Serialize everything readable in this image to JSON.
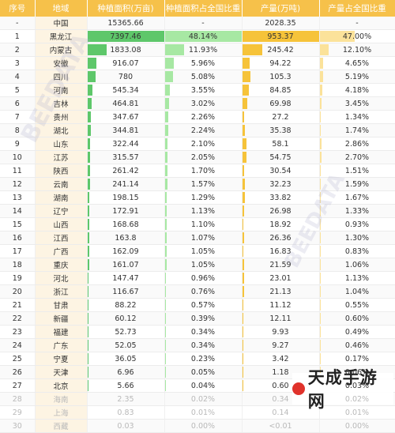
{
  "headers": [
    "序号",
    "地域",
    "种植面积(万亩)",
    "种植面积占全国比重",
    "产量(万吨)",
    "产量占全国比重"
  ],
  "rows": [
    {
      "rank": "-",
      "region": "中国",
      "area": "15365.66",
      "area_pct": "-",
      "production": "2028.35",
      "prod_pct": "-",
      "area_frac": 0,
      "area_pct_frac": 0,
      "prod_frac": 0,
      "prod_pct_frac": 0
    },
    {
      "rank": "1",
      "region": "黑龙江",
      "area": "7397.46",
      "area_pct": "48.14%",
      "production": "953.37",
      "prod_pct": "47.00%",
      "area_frac": 1.0,
      "area_pct_frac": 1.0,
      "prod_frac": 1.0,
      "prod_pct_frac": 0.47
    },
    {
      "rank": "2",
      "region": "内蒙古",
      "area": "1833.08",
      "area_pct": "11.93%",
      "production": "245.42",
      "prod_pct": "12.10%",
      "area_frac": 0.25,
      "area_pct_frac": 0.25,
      "prod_frac": 0.26,
      "prod_pct_frac": 0.12
    },
    {
      "rank": "3",
      "region": "安徽",
      "area": "916.07",
      "area_pct": "5.96%",
      "production": "94.22",
      "prod_pct": "4.65%",
      "area_frac": 0.12,
      "area_pct_frac": 0.12,
      "prod_frac": 0.1,
      "prod_pct_frac": 0.05
    },
    {
      "rank": "4",
      "region": "四川",
      "area": "780",
      "area_pct": "5.08%",
      "production": "105.3",
      "prod_pct": "5.19%",
      "area_frac": 0.11,
      "area_pct_frac": 0.11,
      "prod_frac": 0.11,
      "prod_pct_frac": 0.05
    },
    {
      "rank": "5",
      "region": "河南",
      "area": "545.34",
      "area_pct": "3.55%",
      "production": "84.85",
      "prod_pct": "4.18%",
      "area_frac": 0.07,
      "area_pct_frac": 0.07,
      "prod_frac": 0.09,
      "prod_pct_frac": 0.04
    },
    {
      "rank": "6",
      "region": "吉林",
      "area": "464.81",
      "area_pct": "3.02%",
      "production": "69.98",
      "prod_pct": "3.45%",
      "area_frac": 0.06,
      "area_pct_frac": 0.06,
      "prod_frac": 0.07,
      "prod_pct_frac": 0.03
    },
    {
      "rank": "7",
      "region": "贵州",
      "area": "347.67",
      "area_pct": "2.26%",
      "production": "27.2",
      "prod_pct": "1.34%",
      "area_frac": 0.05,
      "area_pct_frac": 0.05,
      "prod_frac": 0.03,
      "prod_pct_frac": 0.01
    },
    {
      "rank": "8",
      "region": "湖北",
      "area": "344.81",
      "area_pct": "2.24%",
      "production": "35.38",
      "prod_pct": "1.74%",
      "area_frac": 0.05,
      "area_pct_frac": 0.05,
      "prod_frac": 0.04,
      "prod_pct_frac": 0.02
    },
    {
      "rank": "9",
      "region": "山东",
      "area": "322.44",
      "area_pct": "2.10%",
      "production": "58.1",
      "prod_pct": "2.86%",
      "area_frac": 0.04,
      "area_pct_frac": 0.04,
      "prod_frac": 0.06,
      "prod_pct_frac": 0.03
    },
    {
      "rank": "10",
      "region": "江苏",
      "area": "315.57",
      "area_pct": "2.05%",
      "production": "54.75",
      "prod_pct": "2.70%",
      "area_frac": 0.04,
      "area_pct_frac": 0.04,
      "prod_frac": 0.06,
      "prod_pct_frac": 0.03
    },
    {
      "rank": "11",
      "region": "陕西",
      "area": "261.42",
      "area_pct": "1.70%",
      "production": "30.54",
      "prod_pct": "1.51%",
      "area_frac": 0.035,
      "area_pct_frac": 0.035,
      "prod_frac": 0.03,
      "prod_pct_frac": 0.015
    },
    {
      "rank": "12",
      "region": "云南",
      "area": "241.14",
      "area_pct": "1.57%",
      "production": "32.23",
      "prod_pct": "1.59%",
      "area_frac": 0.033,
      "area_pct_frac": 0.033,
      "prod_frac": 0.034,
      "prod_pct_frac": 0.016
    },
    {
      "rank": "13",
      "region": "湖南",
      "area": "198.15",
      "area_pct": "1.29%",
      "production": "33.82",
      "prod_pct": "1.67%",
      "area_frac": 0.027,
      "area_pct_frac": 0.027,
      "prod_frac": 0.035,
      "prod_pct_frac": 0.017
    },
    {
      "rank": "14",
      "region": "辽宁",
      "area": "172.91",
      "area_pct": "1.13%",
      "production": "26.98",
      "prod_pct": "1.33%",
      "area_frac": 0.023,
      "area_pct_frac": 0.023,
      "prod_frac": 0.028,
      "prod_pct_frac": 0.013
    },
    {
      "rank": "15",
      "region": "山西",
      "area": "168.68",
      "area_pct": "1.10%",
      "production": "18.92",
      "prod_pct": "0.93%",
      "area_frac": 0.023,
      "area_pct_frac": 0.023,
      "prod_frac": 0.02,
      "prod_pct_frac": 0.009
    },
    {
      "rank": "16",
      "region": "江西",
      "area": "163.8",
      "area_pct": "1.07%",
      "production": "26.36",
      "prod_pct": "1.30%",
      "area_frac": 0.022,
      "area_pct_frac": 0.022,
      "prod_frac": 0.028,
      "prod_pct_frac": 0.013
    },
    {
      "rank": "17",
      "region": "广西",
      "area": "162.09",
      "area_pct": "1.05%",
      "production": "16.83",
      "prod_pct": "0.83%",
      "area_frac": 0.022,
      "area_pct_frac": 0.022,
      "prod_frac": 0.018,
      "prod_pct_frac": 0.008
    },
    {
      "rank": "18",
      "region": "重庆",
      "area": "161.07",
      "area_pct": "1.05%",
      "production": "21.59",
      "prod_pct": "1.06%",
      "area_frac": 0.022,
      "area_pct_frac": 0.022,
      "prod_frac": 0.023,
      "prod_pct_frac": 0.011
    },
    {
      "rank": "19",
      "region": "河北",
      "area": "147.47",
      "area_pct": "0.96%",
      "production": "23.01",
      "prod_pct": "1.13%",
      "area_frac": 0.02,
      "area_pct_frac": 0.02,
      "prod_frac": 0.024,
      "prod_pct_frac": 0.011
    },
    {
      "rank": "20",
      "region": "浙江",
      "area": "116.67",
      "area_pct": "0.76%",
      "production": "21.13",
      "prod_pct": "1.04%",
      "area_frac": 0.016,
      "area_pct_frac": 0.016,
      "prod_frac": 0.022,
      "prod_pct_frac": 0.01
    },
    {
      "rank": "21",
      "region": "甘肃",
      "area": "88.22",
      "area_pct": "0.57%",
      "production": "11.12",
      "prod_pct": "0.55%",
      "area_frac": 0.012,
      "area_pct_frac": 0.012,
      "prod_frac": 0.012,
      "prod_pct_frac": 0.006
    },
    {
      "rank": "22",
      "region": "新疆",
      "area": "60.12",
      "area_pct": "0.39%",
      "production": "12.11",
      "prod_pct": "0.60%",
      "area_frac": 0.008,
      "area_pct_frac": 0.008,
      "prod_frac": 0.013,
      "prod_pct_frac": 0.006
    },
    {
      "rank": "23",
      "region": "福建",
      "area": "52.73",
      "area_pct": "0.34%",
      "production": "9.93",
      "prod_pct": "0.49%",
      "area_frac": 0.007,
      "area_pct_frac": 0.007,
      "prod_frac": 0.01,
      "prod_pct_frac": 0.005
    },
    {
      "rank": "24",
      "region": "广东",
      "area": "52.05",
      "area_pct": "0.34%",
      "production": "9.27",
      "prod_pct": "0.46%",
      "area_frac": 0.007,
      "area_pct_frac": 0.007,
      "prod_frac": 0.01,
      "prod_pct_frac": 0.005
    },
    {
      "rank": "25",
      "region": "宁夏",
      "area": "36.05",
      "area_pct": "0.23%",
      "production": "3.42",
      "prod_pct": "0.17%",
      "area_frac": 0.005,
      "area_pct_frac": 0.005,
      "prod_frac": 0.004,
      "prod_pct_frac": 0.002
    },
    {
      "rank": "26",
      "region": "天津",
      "area": "6.96",
      "area_pct": "0.05%",
      "production": "1.18",
      "prod_pct": "0.06%",
      "area_frac": 0.001,
      "area_pct_frac": 0.001,
      "prod_frac": 0.001,
      "prod_pct_frac": 0.001
    },
    {
      "rank": "27",
      "region": "北京",
      "area": "5.66",
      "area_pct": "0.04%",
      "production": "0.60",
      "prod_pct": "0.03%",
      "area_frac": 0.001,
      "area_pct_frac": 0.001,
      "prod_frac": 0.001,
      "prod_pct_frac": 0.0
    },
    {
      "rank": "28",
      "region": "海南",
      "area": "2.35",
      "area_pct": "0.02%",
      "production": "0.34",
      "prod_pct": "0.02%",
      "area_frac": 0,
      "area_pct_frac": 0,
      "prod_frac": 0,
      "prod_pct_frac": 0
    },
    {
      "rank": "29",
      "region": "上海",
      "area": "0.83",
      "area_pct": "0.01%",
      "production": "0.14",
      "prod_pct": "0.01%",
      "area_frac": 0,
      "area_pct_frac": 0,
      "prod_frac": 0,
      "prod_pct_frac": 0
    },
    {
      "rank": "30",
      "region": "西藏",
      "area": "0.03",
      "area_pct": "0.00%",
      "production": "<0.01",
      "prod_pct": "0.00%",
      "area_frac": 0,
      "area_pct_frac": 0,
      "prod_frac": 0,
      "prod_pct_frac": 0
    }
  ],
  "watermarks": [
    "BEEDATA",
    "BEEDATA"
  ],
  "logo_text": "天成手游网",
  "colors": {
    "header": "#f6c14a",
    "area_bar": "#5ec76a",
    "area_pct_bar": "#a7e8a3",
    "production_bar": "#f6c33a",
    "production_pct_bar": "#fbe29a"
  }
}
